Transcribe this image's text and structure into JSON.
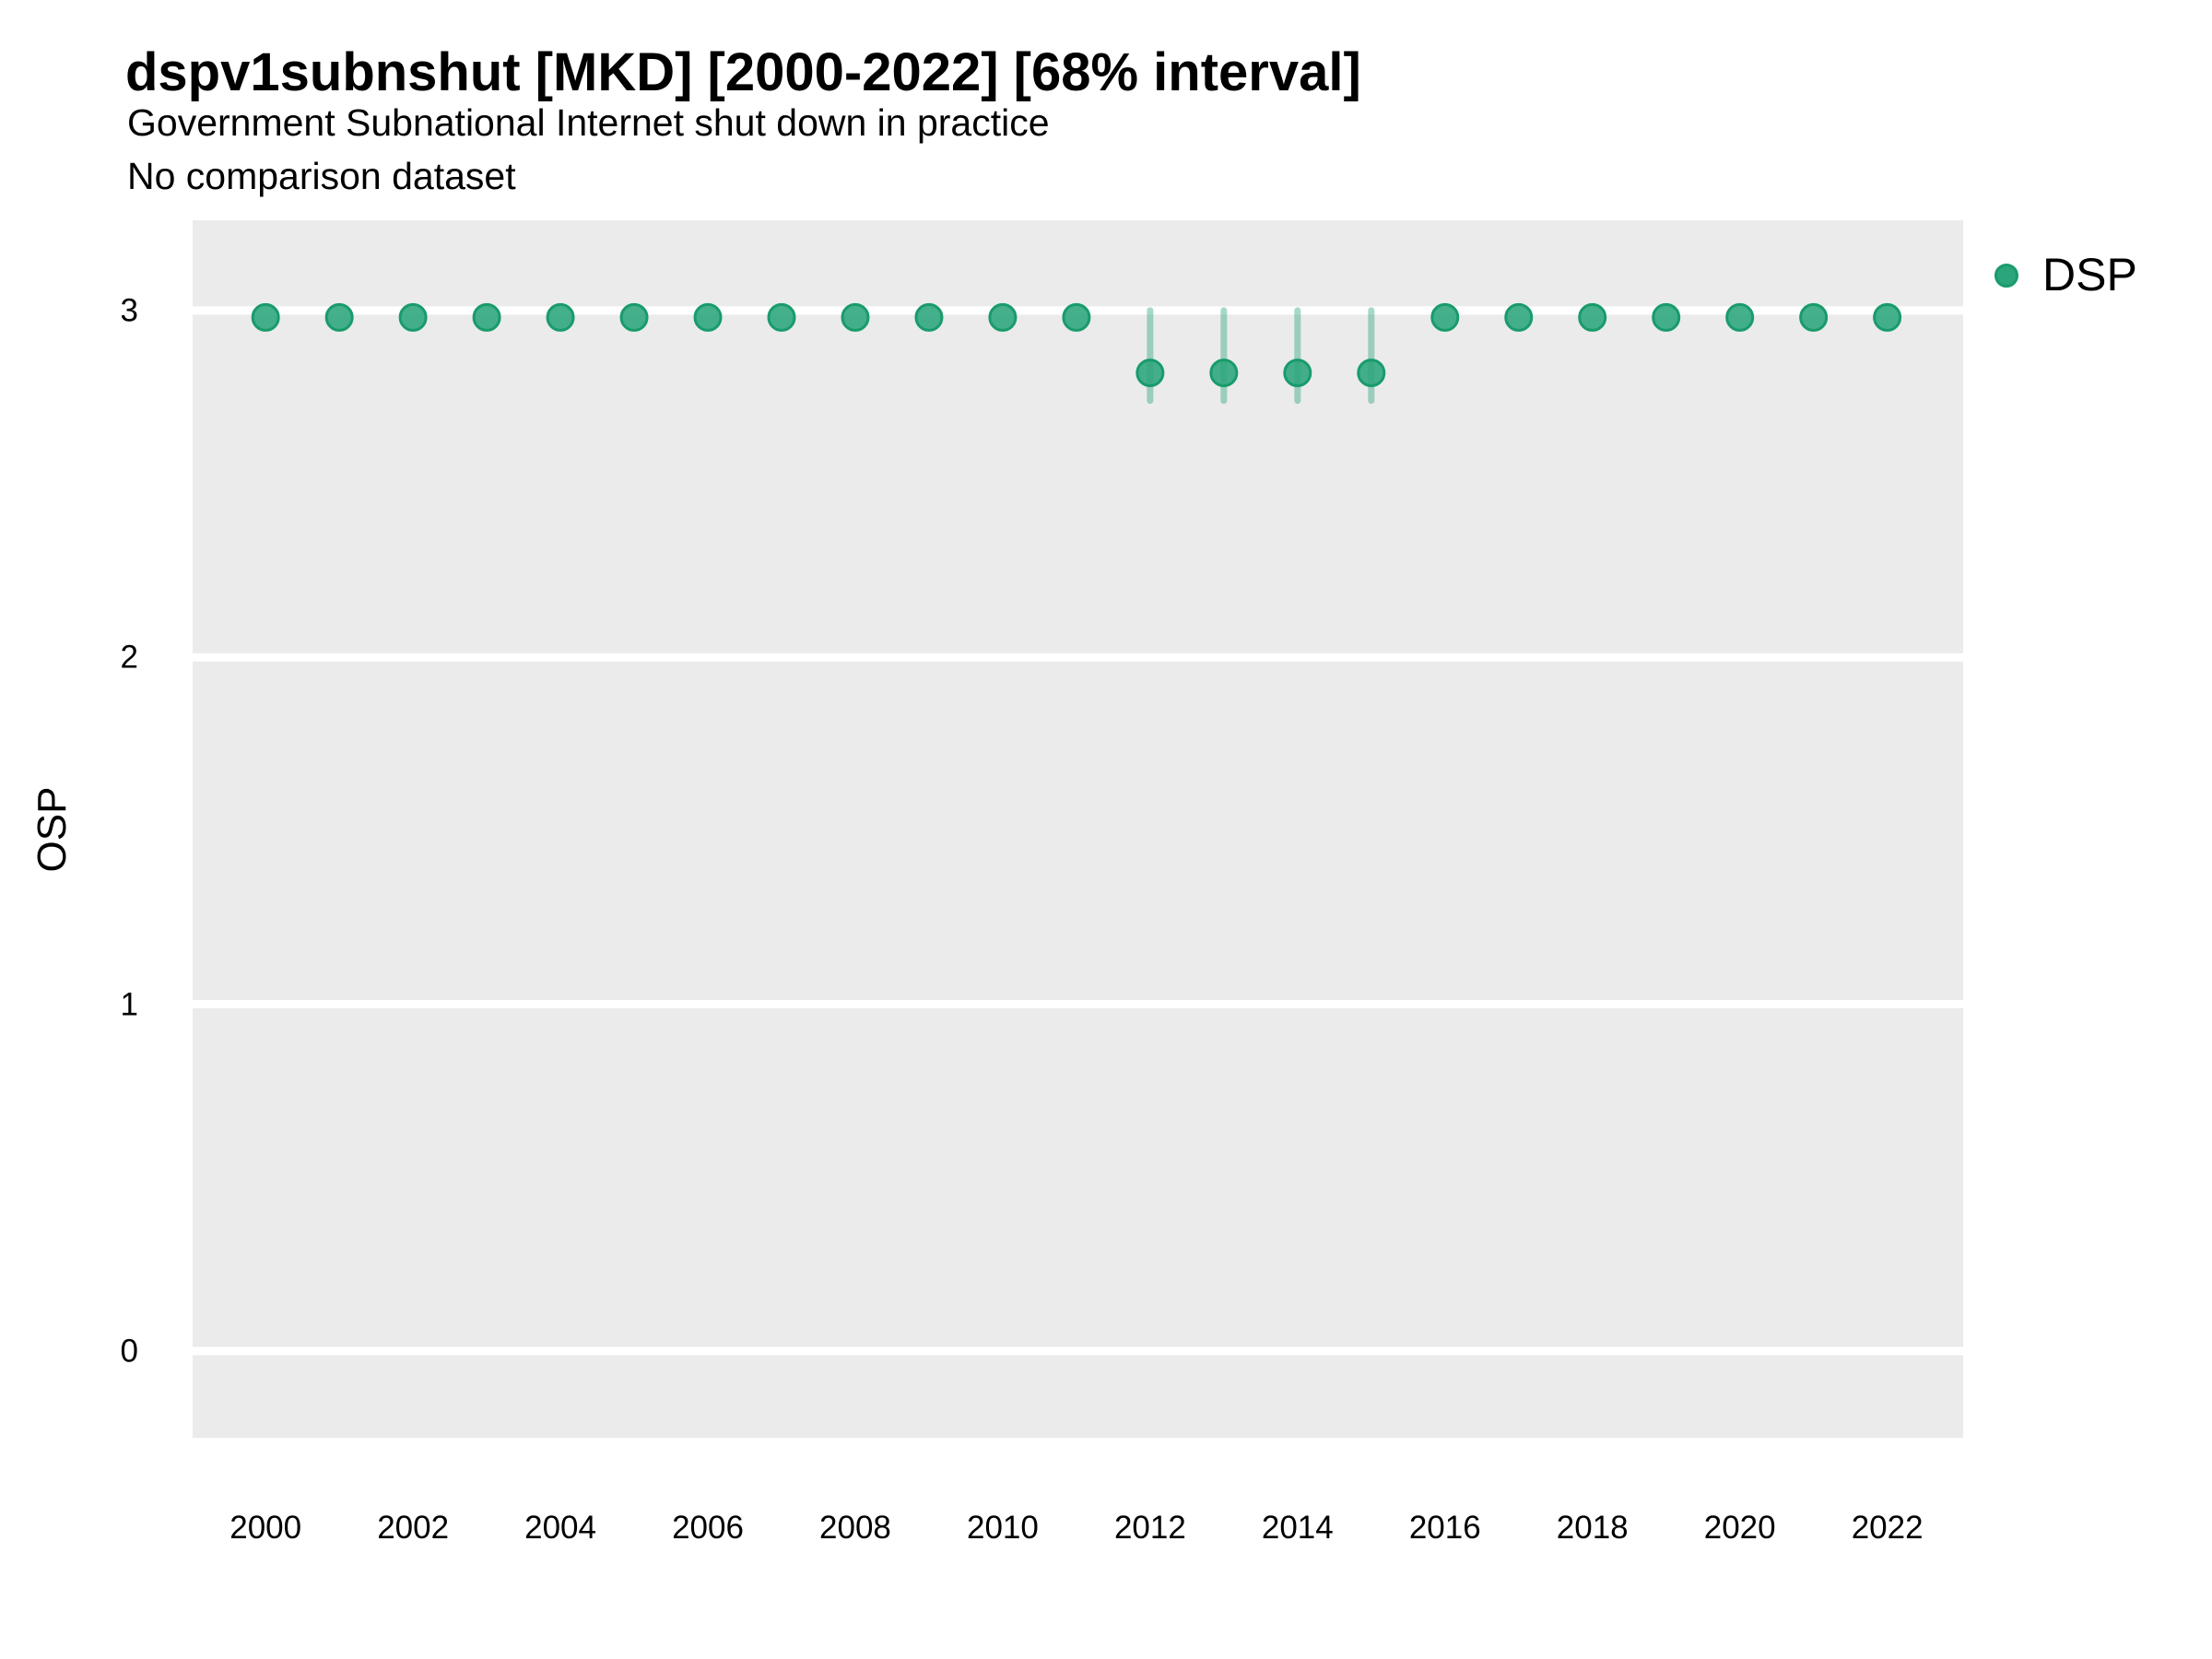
{
  "chart_data": {
    "type": "scatter",
    "title": "dspv1subnshut [MKD] [2000-2022] [68% interval]",
    "subtitle": "Government Subnational Internet shut down in practice",
    "note": "No comparison dataset",
    "xlabel": "",
    "ylabel": "OSP",
    "interval_level": "68%",
    "legend": {
      "position": "right",
      "items": [
        {
          "label": "DSP"
        }
      ]
    },
    "x": [
      2000,
      2001,
      2002,
      2003,
      2004,
      2005,
      2006,
      2007,
      2008,
      2009,
      2010,
      2011,
      2012,
      2013,
      2014,
      2015,
      2016,
      2017,
      2018,
      2019,
      2020,
      2021,
      2022
    ],
    "series": [
      {
        "name": "DSP",
        "values": [
          2.98,
          2.98,
          2.98,
          2.98,
          2.98,
          2.98,
          2.98,
          2.98,
          2.98,
          2.98,
          2.98,
          2.98,
          2.82,
          2.82,
          2.82,
          2.82,
          2.98,
          2.98,
          2.98,
          2.98,
          2.98,
          2.98,
          2.98
        ],
        "interval_low": [
          null,
          null,
          null,
          null,
          null,
          null,
          null,
          null,
          null,
          null,
          null,
          null,
          2.74,
          2.74,
          2.74,
          2.74,
          null,
          null,
          null,
          null,
          null,
          null,
          null
        ],
        "interval_high": [
          null,
          null,
          null,
          null,
          null,
          null,
          null,
          null,
          null,
          null,
          null,
          null,
          3.0,
          3.0,
          3.0,
          3.0,
          null,
          null,
          null,
          null,
          null,
          null,
          null
        ]
      }
    ],
    "xticks": [
      2000,
      2002,
      2004,
      2006,
      2008,
      2010,
      2012,
      2014,
      2016,
      2018,
      2020,
      2022
    ],
    "yticks": [
      0,
      1,
      2,
      3
    ],
    "xlim": [
      1999.01,
      2023.03
    ],
    "ylim": [
      -0.25,
      3.26
    ],
    "grid": "horizontal-major-only"
  },
  "colors": {
    "panel_bg": "#ebebeb",
    "gridline": "#ffffff",
    "point_fill": "#2ba57c",
    "point_stroke": "#199b6b",
    "interval": "rgba(43,165,124,0.42)",
    "text": "#000000"
  }
}
